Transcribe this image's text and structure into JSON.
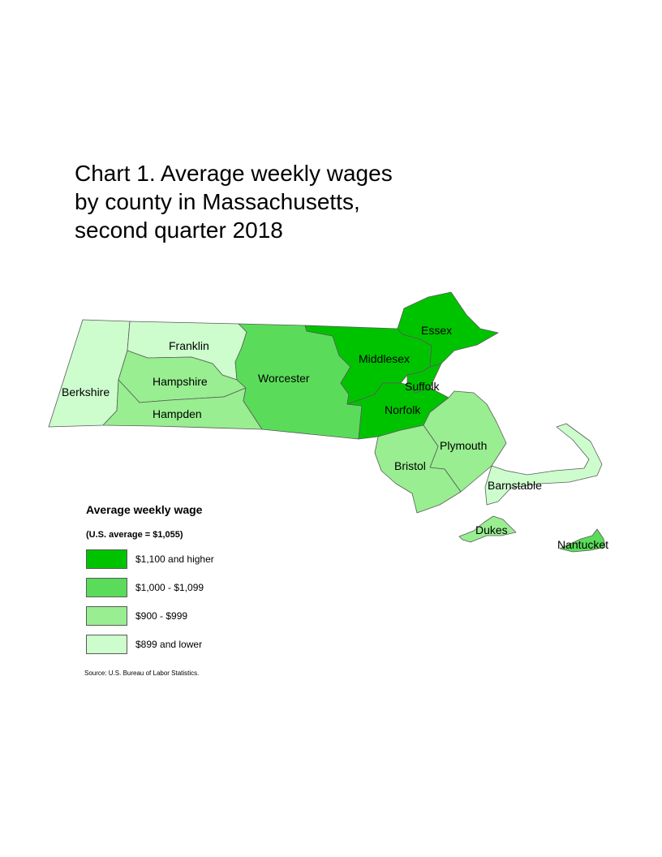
{
  "title": {
    "line1": "Chart 1. Average weekly wages",
    "line2": "by county in Massachusetts,",
    "line3": "second quarter 2018"
  },
  "legend": {
    "title": "Average weekly wage",
    "subtitle": "(U.S. average = $1,055)",
    "classes": [
      {
        "label": "$1,100 and higher",
        "color": "#00c300"
      },
      {
        "label": "$1,000 - $1,099",
        "color": "#5adc5a"
      },
      {
        "label": "$900 - $999",
        "color": "#98ee90"
      },
      {
        "label": "$899 and lower",
        "color": "#cdfdcd"
      }
    ]
  },
  "counties": {
    "berkshire": {
      "name": "Berkshire",
      "class": 3
    },
    "franklin": {
      "name": "Franklin",
      "class": 3
    },
    "hampshire": {
      "name": "Hampshire",
      "class": 2
    },
    "hampden": {
      "name": "Hampden",
      "class": 2
    },
    "worcester": {
      "name": "Worcester",
      "class": 1
    },
    "middlesex": {
      "name": "Middlesex",
      "class": 0
    },
    "essex": {
      "name": "Essex",
      "class": 0
    },
    "suffolk": {
      "name": "Suffolk",
      "class": 0
    },
    "norfolk": {
      "name": "Norfolk",
      "class": 0
    },
    "plymouth": {
      "name": "Plymouth",
      "class": 2
    },
    "bristol": {
      "name": "Bristol",
      "class": 2
    },
    "barnstable": {
      "name": "Barnstable",
      "class": 3
    },
    "dukes": {
      "name": "Dukes",
      "class": 2
    },
    "nantucket": {
      "name": "Nantucket",
      "class": 1
    }
  },
  "source": "Source: U.S. Bureau of Labor Statistics."
}
